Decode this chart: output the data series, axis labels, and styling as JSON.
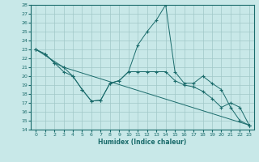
{
  "xlabel": "Humidex (Indice chaleur)",
  "xlim": [
    -0.5,
    23.5
  ],
  "ylim": [
    14,
    28
  ],
  "yticks": [
    14,
    15,
    16,
    17,
    18,
    19,
    20,
    21,
    22,
    23,
    24,
    25,
    26,
    27,
    28
  ],
  "xticks": [
    0,
    1,
    2,
    3,
    4,
    5,
    6,
    7,
    8,
    9,
    10,
    11,
    12,
    13,
    14,
    15,
    16,
    17,
    18,
    19,
    20,
    21,
    22,
    23
  ],
  "bg_color": "#c8e8e8",
  "grid_color": "#a0c8c8",
  "line_color": "#1a6b6b",
  "line1_x": [
    0,
    1,
    2,
    3,
    4,
    5,
    6,
    7,
    8,
    9,
    10,
    11,
    12,
    13,
    14,
    15,
    16,
    17,
    18,
    19,
    20,
    21,
    22,
    23
  ],
  "line1_y": [
    23.0,
    22.5,
    21.5,
    20.5,
    20.0,
    18.5,
    17.2,
    17.3,
    19.2,
    19.5,
    20.5,
    23.5,
    25.0,
    26.3,
    28.0,
    20.5,
    19.2,
    19.2,
    20.0,
    19.2,
    18.5,
    16.5,
    15.0,
    14.5
  ],
  "line2_x": [
    0,
    1,
    2,
    3,
    23
  ],
  "line2_y": [
    23.0,
    22.5,
    21.5,
    21.0,
    14.5
  ],
  "line3_x": [
    0,
    3,
    4,
    5,
    6,
    7,
    8,
    9,
    10,
    11,
    12,
    13,
    14,
    15,
    16,
    17,
    18,
    19,
    20,
    21,
    22,
    23
  ],
  "line3_y": [
    23.0,
    21.0,
    20.0,
    18.5,
    17.2,
    17.3,
    19.2,
    19.5,
    20.5,
    20.5,
    20.5,
    20.5,
    20.5,
    19.5,
    19.0,
    18.8,
    18.3,
    17.5,
    16.5,
    17.0,
    16.5,
    14.5
  ]
}
